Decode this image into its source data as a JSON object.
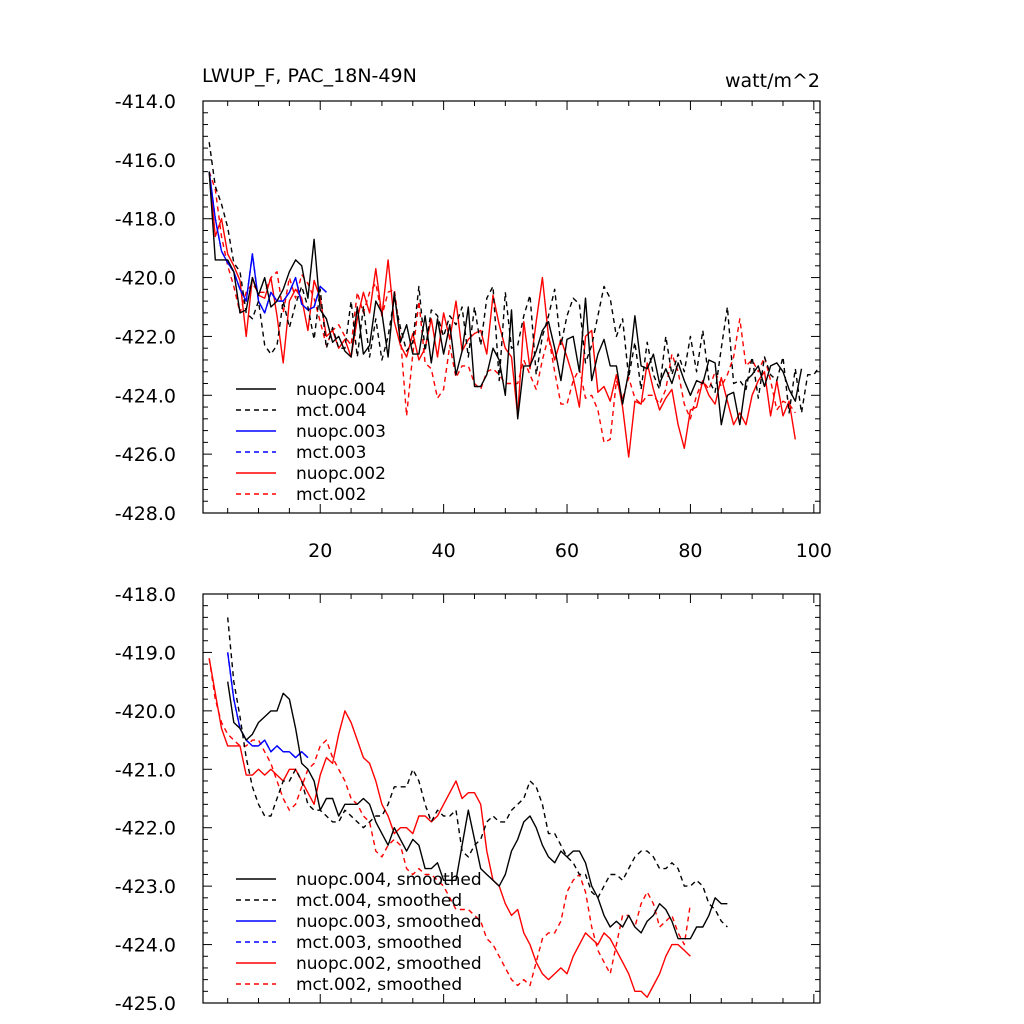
{
  "chart_data": [
    {
      "type": "line",
      "title": "LWUP_F, PAC_18N-49N",
      "units": "watt/m^2",
      "xlim": [
        1,
        101
      ],
      "ylim": [
        -428,
        -414
      ],
      "xticks": [
        20,
        40,
        60,
        80,
        100
      ],
      "yticks": [
        -428,
        -426,
        -424,
        -422,
        -420,
        -418,
        -416,
        -414
      ],
      "ytick_labels": [
        "-428.0",
        "-426.0",
        "-424.0",
        "-422.0",
        "-420.0",
        "-418.0",
        "-416.0",
        "-414.0"
      ],
      "xtick_labels": [
        "20",
        "40",
        "60",
        "80",
        "100"
      ],
      "legend_position": "bottom-left",
      "series": [
        {
          "name": "nuopc.004",
          "color": "#000000",
          "dash": "solid",
          "x_start": 2,
          "values": [
            -416.4,
            -419.4,
            -419.4,
            -419.4,
            -419.8,
            -421.2,
            -421.1,
            -420.0,
            -420.6,
            -420.0,
            -421.0,
            -420.8,
            -420.4,
            -419.8,
            -419.4,
            -419.6,
            -420.7,
            -418.7,
            -421.1,
            -421.4,
            -422.2,
            -422.0,
            -422.5,
            -422.7,
            -421.0,
            -422.6,
            -422.3,
            -420.8,
            -421.2,
            -422.7,
            -420.5,
            -422.2,
            -421.6,
            -422.6,
            -422.6,
            -421.3,
            -422.9,
            -421.4,
            -422.6,
            -421.6,
            -423.3,
            -422.5,
            -421.0,
            -423.7,
            -423.7,
            -423.3,
            -422.4,
            -422.8,
            -424.0,
            -421.1,
            -424.8,
            -423.0,
            -423.0,
            -422.5,
            -421.8,
            -421.5,
            -422.4,
            -423.5,
            -422.1,
            -422.0,
            -423.2,
            -420.7,
            -423.5,
            -422.6,
            -422.1,
            -423.0,
            -423.0,
            -424.3,
            -423.2,
            -421.3,
            -423.0,
            -423.1,
            -422.6,
            -423.6,
            -423.1,
            -423.6,
            -422.9,
            -423.5,
            -424.0,
            -423.5,
            -423.6,
            -422.8,
            -422.9,
            -425.0,
            -424.0,
            -423.9,
            -425.0,
            -423.5,
            -423.3,
            -423.0,
            -423.7,
            -423.0,
            -422.9,
            -423.2,
            -423.8,
            -424.2,
            -423.1
          ],
          "smoothed": [
            -419.5,
            -420.2,
            -420.3,
            -420.5,
            -420.4,
            -420.2,
            -420.1,
            -420.0,
            -420.0,
            -419.7,
            -419.8,
            -420.3,
            -420.9,
            -421.0,
            -421.2,
            -421.7,
            -421.5,
            -421.5,
            -421.8,
            -421.6,
            -421.6,
            -421.6,
            -421.5,
            -421.6,
            -421.9,
            -422.1,
            -422.3,
            -422.0,
            -422.2,
            -422.4,
            -422.2,
            -422.3,
            -422.7,
            -422.7,
            -422.6,
            -422.9,
            -422.9,
            -422.9,
            -422.3,
            -421.7,
            -422.2,
            -422.7,
            -422.8,
            -422.9,
            -423.0,
            -422.8,
            -422.4,
            -422.2,
            -421.9,
            -421.8,
            -422.0,
            -422.3,
            -422.5,
            -422.6,
            -422.4,
            -422.5,
            -422.4,
            -422.4,
            -422.6,
            -423.0,
            -423.2,
            -423.5,
            -423.7,
            -423.6,
            -423.7,
            -423.5,
            -423.7,
            -423.8,
            -423.6,
            -423.5,
            -423.3,
            -423.4,
            -423.6,
            -423.9,
            -423.9,
            -423.9,
            -423.7,
            -423.7,
            -423.5,
            -423.2,
            -423.3,
            -423.3
          ],
          "smoothed_x_start": 5
        },
        {
          "name": "mct.004",
          "color": "#000000",
          "dash": "dashed",
          "x_start": 2,
          "values": [
            -415.4,
            -416.9,
            -417.5,
            -418.3,
            -419.5,
            -419.8,
            -421.2,
            -421.4,
            -420.8,
            -422.3,
            -422.6,
            -422.3,
            -420.8,
            -421.7,
            -420.9,
            -420.3,
            -421.0,
            -422.1,
            -420.4,
            -422.4,
            -421.7,
            -422.4,
            -422.4,
            -420.8,
            -422.7,
            -421.0,
            -422.7,
            -421.4,
            -422.8,
            -422.0,
            -420.7,
            -421.7,
            -422.5,
            -422.2,
            -420.3,
            -422.5,
            -421.1,
            -421.3,
            -422.0,
            -421.3,
            -421.6,
            -421.0,
            -422.7,
            -421.0,
            -422.3,
            -420.7,
            -420.3,
            -423.5,
            -420.5,
            -422.4,
            -422.3,
            -421.3,
            -420.6,
            -423.3,
            -422.0,
            -421.3,
            -420.4,
            -422.3,
            -421.3,
            -420.7,
            -420.9,
            -422.9,
            -422.3,
            -421.3,
            -420.3,
            -420.7,
            -422.0,
            -421.4,
            -423.4,
            -422.2,
            -423.8,
            -422.2,
            -423.3,
            -423.8,
            -422.0,
            -423.3,
            -422.6,
            -423.2,
            -422.0,
            -423.2,
            -421.8,
            -423.5,
            -423.9,
            -422.4,
            -421.0,
            -423.6,
            -423.5,
            -423.8,
            -422.7,
            -424.1,
            -422.7,
            -423.3,
            -423.5,
            -422.7,
            -424.6,
            -423.1,
            -424.6,
            -423.3,
            -423.3,
            -423.0
          ],
          "smoothed": [
            -418.4,
            -419.5,
            -420.1,
            -420.8,
            -421.3,
            -421.6,
            -421.8,
            -421.8,
            -421.5,
            -421.2,
            -421.2,
            -421.0,
            -421.2,
            -421.6,
            -421.7,
            -421.7,
            -421.8,
            -421.9,
            -421.9,
            -421.7,
            -421.8,
            -421.9,
            -422.0,
            -421.9,
            -421.8,
            -421.8,
            -421.6,
            -421.3,
            -421.3,
            -421.3,
            -421.0,
            -421.2,
            -421.6,
            -421.9,
            -421.7,
            -421.8,
            -421.8,
            -421.7,
            -422.4,
            -422.5,
            -422.3,
            -422.2,
            -421.9,
            -421.8,
            -421.9,
            -421.9,
            -421.7,
            -421.6,
            -421.5,
            -421.2,
            -421.3,
            -421.6,
            -422.1,
            -422.1,
            -422.3,
            -422.5,
            -422.6,
            -422.8,
            -422.8,
            -423.1,
            -423.2,
            -423.0,
            -422.8,
            -422.8,
            -422.9,
            -422.7,
            -422.5,
            -422.4,
            -422.4,
            -422.5,
            -422.7,
            -422.7,
            -422.6,
            -422.7,
            -423.0,
            -423.0,
            -422.9,
            -423.0,
            -423.3,
            -423.4,
            -423.6,
            -423.7
          ],
          "smoothed_x_start": 5
        },
        {
          "name": "nuopc.003",
          "color": "#0000ff",
          "dash": "solid",
          "x_start": 2,
          "values": [
            -416.4,
            -418.0,
            -419.1,
            -419.5,
            -419.8,
            -420.4,
            -420.8,
            -419.2,
            -420.8,
            -421.2,
            -420.5,
            -420.8,
            -420.8,
            -420.5,
            -420.0,
            -420.9,
            -421.1,
            -421.0,
            -420.3,
            -420.5
          ],
          "smoothed": [
            -419.0,
            -419.8,
            -420.3,
            -420.5,
            -420.6,
            -420.6,
            -420.5,
            -420.7,
            -420.6,
            -420.7,
            -420.7,
            -420.8,
            -420.7,
            -420.8
          ],
          "smoothed_x_start": 5
        },
        {
          "name": "mct.003",
          "color": "#0000ff",
          "dash": "dashed",
          "x_start": 2,
          "values": [
            -416.4,
            -418.0,
            -419.1,
            -419.5,
            -419.8,
            -420.4,
            -420.8,
            -419.2,
            -420.8,
            -421.2,
            -420.5,
            -420.8,
            -420.8,
            -420.5,
            -420.0,
            -420.9,
            -421.1,
            -421.0,
            -420.3,
            -420.5
          ],
          "smoothed": [
            -419.0,
            -419.8,
            -420.3,
            -420.5,
            -420.6,
            -420.6,
            -420.5,
            -420.7,
            -420.6,
            -420.7,
            -420.7,
            -420.8,
            -420.7,
            -420.8
          ],
          "smoothed_x_start": 5
        },
        {
          "name": "nuopc.002",
          "color": "#ff0000",
          "dash": "solid",
          "x_start": 2,
          "values": [
            -416.4,
            -418.6,
            -418.0,
            -419.2,
            -419.6,
            -420.1,
            -422.0,
            -420.0,
            -420.6,
            -420.7,
            -420.0,
            -421.3,
            -422.9,
            -420.8,
            -420.4,
            -420.7,
            -421.8,
            -420.1,
            -420.7,
            -422.0,
            -421.8,
            -422.4,
            -422.1,
            -422.7,
            -421.4,
            -420.5,
            -421.2,
            -419.7,
            -421.3,
            -419.4,
            -421.5,
            -422.3,
            -422.7,
            -421.9,
            -422.8,
            -422.4,
            -421.4,
            -422.7,
            -421.2,
            -422.1,
            -420.8,
            -422.5,
            -422.1,
            -421.9,
            -421.8,
            -422.6,
            -420.6,
            -421.6,
            -422.4,
            -422.7,
            -424.7,
            -421.5,
            -423.1,
            -421.5,
            -420.0,
            -422.0,
            -422.8,
            -422.1,
            -422.7,
            -423.4,
            -424.4,
            -422.0,
            -421.8,
            -423.9,
            -423.7,
            -424.2,
            -423.3,
            -424.4,
            -426.1,
            -424.2,
            -424.3,
            -422.9,
            -423.8,
            -424.5,
            -424.1,
            -423.8,
            -425.0,
            -425.8,
            -424.5,
            -424.4,
            -423.5,
            -424.0,
            -424.3,
            -423.4,
            -424.2,
            -425.0,
            -424.6,
            -425.0,
            -424.0,
            -423.5,
            -423.2,
            -424.7,
            -423.5,
            -424.7,
            -424.2,
            -425.5
          ],
          "smoothed": [
            -419.1,
            -419.7,
            -420.3,
            -420.6,
            -420.6,
            -420.6,
            -421.1,
            -421.1,
            -421.0,
            -421.1,
            -421.0,
            -421.1,
            -421.2,
            -421.0,
            -421.0,
            -421.2,
            -421.4,
            -421.6,
            -421.1,
            -420.8,
            -420.9,
            -420.4,
            -420.0,
            -420.2,
            -420.5,
            -420.8,
            -420.9,
            -421.2,
            -421.6,
            -421.8,
            -422.1,
            -422.0,
            -422.0,
            -422.1,
            -421.8,
            -421.8,
            -421.9,
            -421.8,
            -421.6,
            -421.4,
            -421.2,
            -421.5,
            -421.4,
            -421.4,
            -421.6,
            -422.4,
            -422.9,
            -423.0,
            -423.3,
            -423.5,
            -423.4,
            -423.8,
            -424.0,
            -424.3,
            -424.5,
            -424.6,
            -424.5,
            -424.4,
            -424.5,
            -424.2,
            -424.0,
            -423.8,
            -423.9,
            -424.0,
            -423.8,
            -423.9,
            -424.1,
            -424.3,
            -424.5,
            -424.8,
            -424.8,
            -424.9,
            -424.7,
            -424.5,
            -424.2,
            -424.0,
            -424.0,
            -424.1,
            -424.2
          ]
        },
        {
          "name": "mct.002",
          "color": "#ff0000",
          "dash": "dashed",
          "x_start": 2,
          "values": [
            -416.4,
            -417.0,
            -418.6,
            -419.6,
            -420.3,
            -421.2,
            -420.5,
            -420.2,
            -420.5,
            -420.5,
            -420.0,
            -419.8,
            -421.2,
            -420.0,
            -420.7,
            -419.9,
            -420.2,
            -420.7,
            -421.5,
            -422.3,
            -421.8,
            -421.6,
            -422.0,
            -422.3,
            -420.5,
            -421.2,
            -420.5,
            -420.2,
            -421.3,
            -420.5,
            -420.4,
            -422.0,
            -424.7,
            -422.6,
            -420.8,
            -422.9,
            -423.1,
            -424.1,
            -423.8,
            -422.3,
            -423.4,
            -423.0,
            -423.0,
            -423.6,
            -423.8,
            -423.2,
            -423.1,
            -423.3,
            -423.6,
            -423.6,
            -423.6,
            -422.8,
            -423.3,
            -423.8,
            -422.8,
            -422.0,
            -423.2,
            -424.3,
            -424.3,
            -423.5,
            -423.1,
            -424.1,
            -424.0,
            -424.5,
            -425.6,
            -425.5,
            -423.5,
            -424.1,
            -423.4,
            -424.1,
            -424.3,
            -424.0,
            -424.0,
            -424.3,
            -423.8,
            -422.6,
            -423.2,
            -424.3,
            -424.8,
            -424.0,
            -423.5,
            -423.8,
            -423.2,
            -423.7,
            -423.3,
            -422.7,
            -421.4,
            -423.0,
            -422.8,
            -423.2,
            -422.7,
            -423.5,
            -424.5,
            -424.2,
            -424.3,
            -424.6
          ],
          "smoothed": [
            -419.1,
            -419.8,
            -420.2,
            -420.4,
            -420.5,
            -420.6,
            -420.6,
            -420.5,
            -420.5,
            -420.7,
            -420.9,
            -421.2,
            -421.5,
            -421.7,
            -421.6,
            -421.3,
            -421.0,
            -420.9,
            -420.6,
            -420.5,
            -420.8,
            -421.0,
            -421.2,
            -421.5,
            -421.6,
            -421.8,
            -421.9,
            -422.4,
            -422.5,
            -422.3,
            -422.2,
            -422.3,
            -422.7,
            -422.8,
            -422.7,
            -422.8,
            -422.8,
            -422.9,
            -423.0,
            -423.2,
            -423.4,
            -423.4,
            -423.4,
            -423.5,
            -423.6,
            -423.9,
            -424.0,
            -424.2,
            -424.4,
            -424.6,
            -424.7,
            -424.6,
            -424.7,
            -424.3,
            -423.9,
            -423.8,
            -423.8,
            -423.6,
            -423.1,
            -422.9,
            -422.8,
            -423.1,
            -423.7,
            -424.1,
            -424.3,
            -424.5,
            -424.0,
            -423.5,
            -423.5,
            -423.7,
            -423.3,
            -423.1,
            -423.3,
            -423.7,
            -423.6,
            -423.5,
            -423.8,
            -424.0,
            -423.3
          ]
        }
      ]
    },
    {
      "type": "line",
      "title": "",
      "xlim": [
        1,
        101
      ],
      "ylim": [
        -425,
        -418
      ],
      "xticks": [
        20,
        40,
        60,
        80,
        100
      ],
      "yticks": [
        -425,
        -424,
        -423,
        -422,
        -421,
        -420,
        -419,
        -418
      ],
      "ytick_labels": [
        "-425.0",
        "-424.0",
        "-423.0",
        "-422.0",
        "-421.0",
        "-420.0",
        "-419.0",
        "-418.0"
      ],
      "legend_position": "bottom-left",
      "series_names": [
        "nuopc.004, smoothed",
        "mct.004, smoothed",
        "nuopc.003, smoothed",
        "mct.003, smoothed",
        "nuopc.002, smoothed",
        "mct.002, smoothed"
      ]
    }
  ]
}
